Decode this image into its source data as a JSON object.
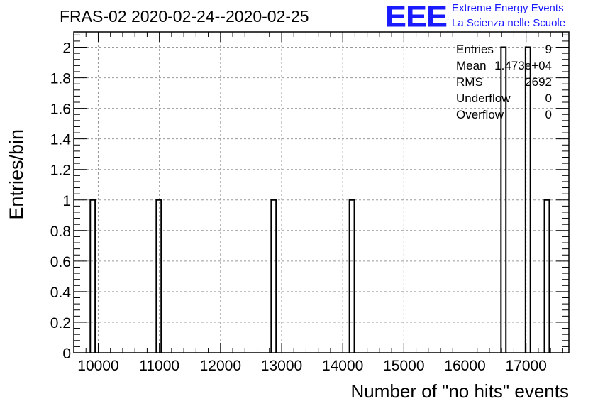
{
  "title": "FRAS-02 2020-02-24--2020-02-25",
  "logo": {
    "mark": "EEE",
    "line1": "Extreme Energy Events",
    "line2": "La Scienza nelle Scuole"
  },
  "stats": [
    {
      "label": "Entries",
      "value": "9"
    },
    {
      "label": "Mean",
      "value": "1.473e+04"
    },
    {
      "label": "RMS",
      "value": "2692"
    },
    {
      "label": "Underflow",
      "value": "0"
    },
    {
      "label": "Overflow",
      "value": "0"
    }
  ],
  "chart_data": {
    "type": "bar",
    "title": "FRAS-02 2020-02-24--2020-02-25",
    "xlabel": "Number of \"no hits\" events",
    "ylabel": "Entries/bin",
    "xlim": [
      9600,
      17700
    ],
    "ylim": [
      0,
      2.1
    ],
    "grid": true,
    "x_ticks": [
      10000,
      11000,
      12000,
      13000,
      14000,
      15000,
      16000,
      17000
    ],
    "y_ticks": [
      0,
      0.2,
      0.4,
      0.6,
      0.8,
      1,
      1.2,
      1.4,
      1.6,
      1.8,
      2
    ],
    "y_tick_labels": [
      "0",
      "0.2",
      "0.4",
      "0.6",
      "0.8",
      "1",
      "1.2",
      "1.4",
      "1.6",
      "1.8",
      "2"
    ],
    "bin_width": 80,
    "bins": [
      {
        "low": 9870,
        "value": 1
      },
      {
        "low": 10950,
        "value": 1
      },
      {
        "low": 12830,
        "value": 1
      },
      {
        "low": 14110,
        "value": 1
      },
      {
        "low": 16590,
        "value": 2
      },
      {
        "low": 16990,
        "value": 2
      },
      {
        "low": 17300,
        "value": 1
      }
    ]
  }
}
